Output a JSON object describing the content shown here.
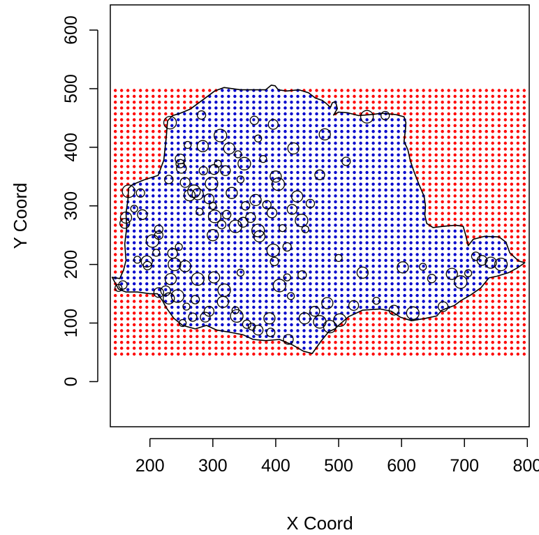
{
  "chart_data": {
    "type": "scatter",
    "title": "",
    "xlabel": "X Coord",
    "ylabel": "Y Coord",
    "xlim": [
      137,
      803
    ],
    "ylim": [
      -77,
      643
    ],
    "xticks": [
      200,
      300,
      400,
      500,
      600,
      700,
      800
    ],
    "yticks": [
      0,
      100,
      200,
      300,
      400,
      500,
      600
    ],
    "grid": false,
    "legend": "none",
    "colors": {
      "outside_grid": "#ff0000",
      "inside_grid": "#0000cc",
      "samples": "#000000",
      "border": "#000000"
    },
    "prediction_grid": {
      "x_from": 145,
      "x_to": 800,
      "y_from": 47,
      "y_to": 497,
      "spacing": 10
    },
    "region_border": [
      [
        140,
        178
      ],
      [
        152,
        176
      ],
      [
        158,
        190
      ],
      [
        162,
        207
      ],
      [
        160,
        235
      ],
      [
        163,
        262
      ],
      [
        162,
        288
      ],
      [
        165,
        310
      ],
      [
        166,
        330
      ],
      [
        172,
        336
      ],
      [
        190,
        344
      ],
      [
        213,
        352
      ],
      [
        222,
        378
      ],
      [
        226,
        418
      ],
      [
        228,
        445
      ],
      [
        236,
        454
      ],
      [
        248,
        458
      ],
      [
        264,
        465
      ],
      [
        283,
        480
      ],
      [
        303,
        496
      ],
      [
        318,
        502
      ],
      [
        344,
        498
      ],
      [
        366,
        498
      ],
      [
        384,
        498
      ],
      [
        393,
        506
      ],
      [
        399,
        505
      ],
      [
        404,
        498
      ],
      [
        417,
        496
      ],
      [
        437,
        498
      ],
      [
        452,
        493
      ],
      [
        463,
        484
      ],
      [
        474,
        480
      ],
      [
        480,
        475
      ],
      [
        487,
        468
      ],
      [
        490,
        476
      ],
      [
        495,
        478
      ],
      [
        498,
        466
      ],
      [
        492,
        455
      ],
      [
        500,
        460
      ],
      [
        514,
        459
      ],
      [
        532,
        454
      ],
      [
        553,
        456
      ],
      [
        568,
        458
      ],
      [
        590,
        456
      ],
      [
        604,
        452
      ],
      [
        607,
        442
      ],
      [
        606,
        428
      ],
      [
        604,
        410
      ],
      [
        610,
        396
      ],
      [
        614,
        377
      ],
      [
        620,
        358
      ],
      [
        628,
        336
      ],
      [
        636,
        316
      ],
      [
        638,
        300
      ],
      [
        637,
        284
      ],
      [
        640,
        270
      ],
      [
        650,
        263
      ],
      [
        666,
        265
      ],
      [
        686,
        267
      ],
      [
        698,
        265
      ],
      [
        702,
        250
      ],
      [
        706,
        232
      ],
      [
        714,
        243
      ],
      [
        732,
        248
      ],
      [
        755,
        247
      ],
      [
        766,
        238
      ],
      [
        772,
        220
      ],
      [
        786,
        206
      ],
      [
        796,
        203
      ],
      [
        784,
        194
      ],
      [
        770,
        186
      ],
      [
        752,
        180
      ],
      [
        739,
        177
      ],
      [
        726,
        160
      ],
      [
        710,
        148
      ],
      [
        694,
        138
      ],
      [
        684,
        130
      ],
      [
        664,
        122
      ],
      [
        656,
        112
      ],
      [
        638,
        108
      ],
      [
        616,
        104
      ],
      [
        598,
        110
      ],
      [
        584,
        120
      ],
      [
        566,
        124
      ],
      [
        538,
        122
      ],
      [
        516,
        111
      ],
      [
        502,
        98
      ],
      [
        494,
        90
      ],
      [
        484,
        85
      ],
      [
        472,
        69
      ],
      [
        458,
        48
      ],
      [
        444,
        52
      ],
      [
        426,
        63
      ],
      [
        406,
        72
      ],
      [
        384,
        70
      ],
      [
        364,
        72
      ],
      [
        348,
        80
      ],
      [
        328,
        84
      ],
      [
        306,
        88
      ],
      [
        290,
        96
      ],
      [
        272,
        90
      ],
      [
        252,
        96
      ],
      [
        238,
        108
      ],
      [
        226,
        126
      ],
      [
        220,
        138
      ],
      [
        212,
        150
      ],
      [
        200,
        150
      ],
      [
        180,
        153
      ],
      [
        162,
        153
      ],
      [
        150,
        158
      ],
      [
        144,
        170
      ],
      [
        140,
        178
      ]
    ],
    "samples": {
      "x": [
        150,
        157,
        160,
        162,
        166,
        175,
        185,
        188,
        195,
        204,
        210,
        214,
        225,
        233,
        239,
        246,
        248,
        256,
        263,
        270,
        279,
        285,
        294,
        300,
        303,
        308,
        314,
        320,
        330,
        336,
        344,
        352,
        360,
        368,
        372,
        380,
        386,
        394,
        400,
        404,
        411,
        418,
        426,
        434,
        441,
        447,
        455,
        470,
        478,
        486,
        500,
        512,
        524,
        538,
        545,
        560,
        574,
        588,
        602,
        618,
        634,
        648,
        666,
        680,
        694,
        706,
        718,
        728,
        742,
        758,
        180,
        196,
        214,
        230,
        244,
        258,
        272,
        288,
        302,
        318,
        336,
        354,
        372,
        390,
        406,
        424,
        442,
        462,
        482,
        502,
        252,
        268,
        294,
        316,
        338,
        362,
        392,
        420,
        446,
        470,
        300,
        322,
        348,
        374,
        396,
        418,
        230,
        250,
        276,
        298,
        344,
        398,
        248,
        284,
        312,
        340,
        366,
        396,
        428,
        232,
        260,
        282,
        302,
        326,
        350,
        372,
        214,
        236,
        256,
        276
      ],
      "y": [
        160,
        165,
        270,
        280,
        325,
        295,
        322,
        285,
        205,
        240,
        220,
        260,
        155,
        175,
        200,
        230,
        372,
        340,
        318,
        325,
        290,
        360,
        312,
        250,
        282,
        372,
        268,
        360,
        322,
        265,
        345,
        300,
        280,
        310,
        258,
        380,
        302,
        288,
        350,
        337,
        262,
        230,
        294,
        316,
        275,
        260,
        304,
        353,
        422,
        94,
        211,
        376,
        130,
        186,
        452,
        138,
        454,
        122,
        195,
        117,
        196,
        176,
        128,
        184,
        170,
        185,
        214,
        207,
        203,
        200,
        208,
        198,
        152,
        142,
        146,
        128,
        140,
        110,
        178,
        156,
        122,
        98,
        88,
        108,
        164,
        146,
        182,
        120,
        134,
        105,
        100,
        110,
        120,
        136,
        112,
        94,
        84,
        72,
        108,
        102,
        300,
        285,
        272,
        248,
        224,
        178,
        345,
        364,
        320,
        338,
        186,
        205,
        380,
        402,
        420,
        388,
        446,
        439,
        398,
        442,
        404,
        455,
        362,
        398,
        372,
        415,
        250,
        219,
        197,
        175
      ]
    }
  }
}
